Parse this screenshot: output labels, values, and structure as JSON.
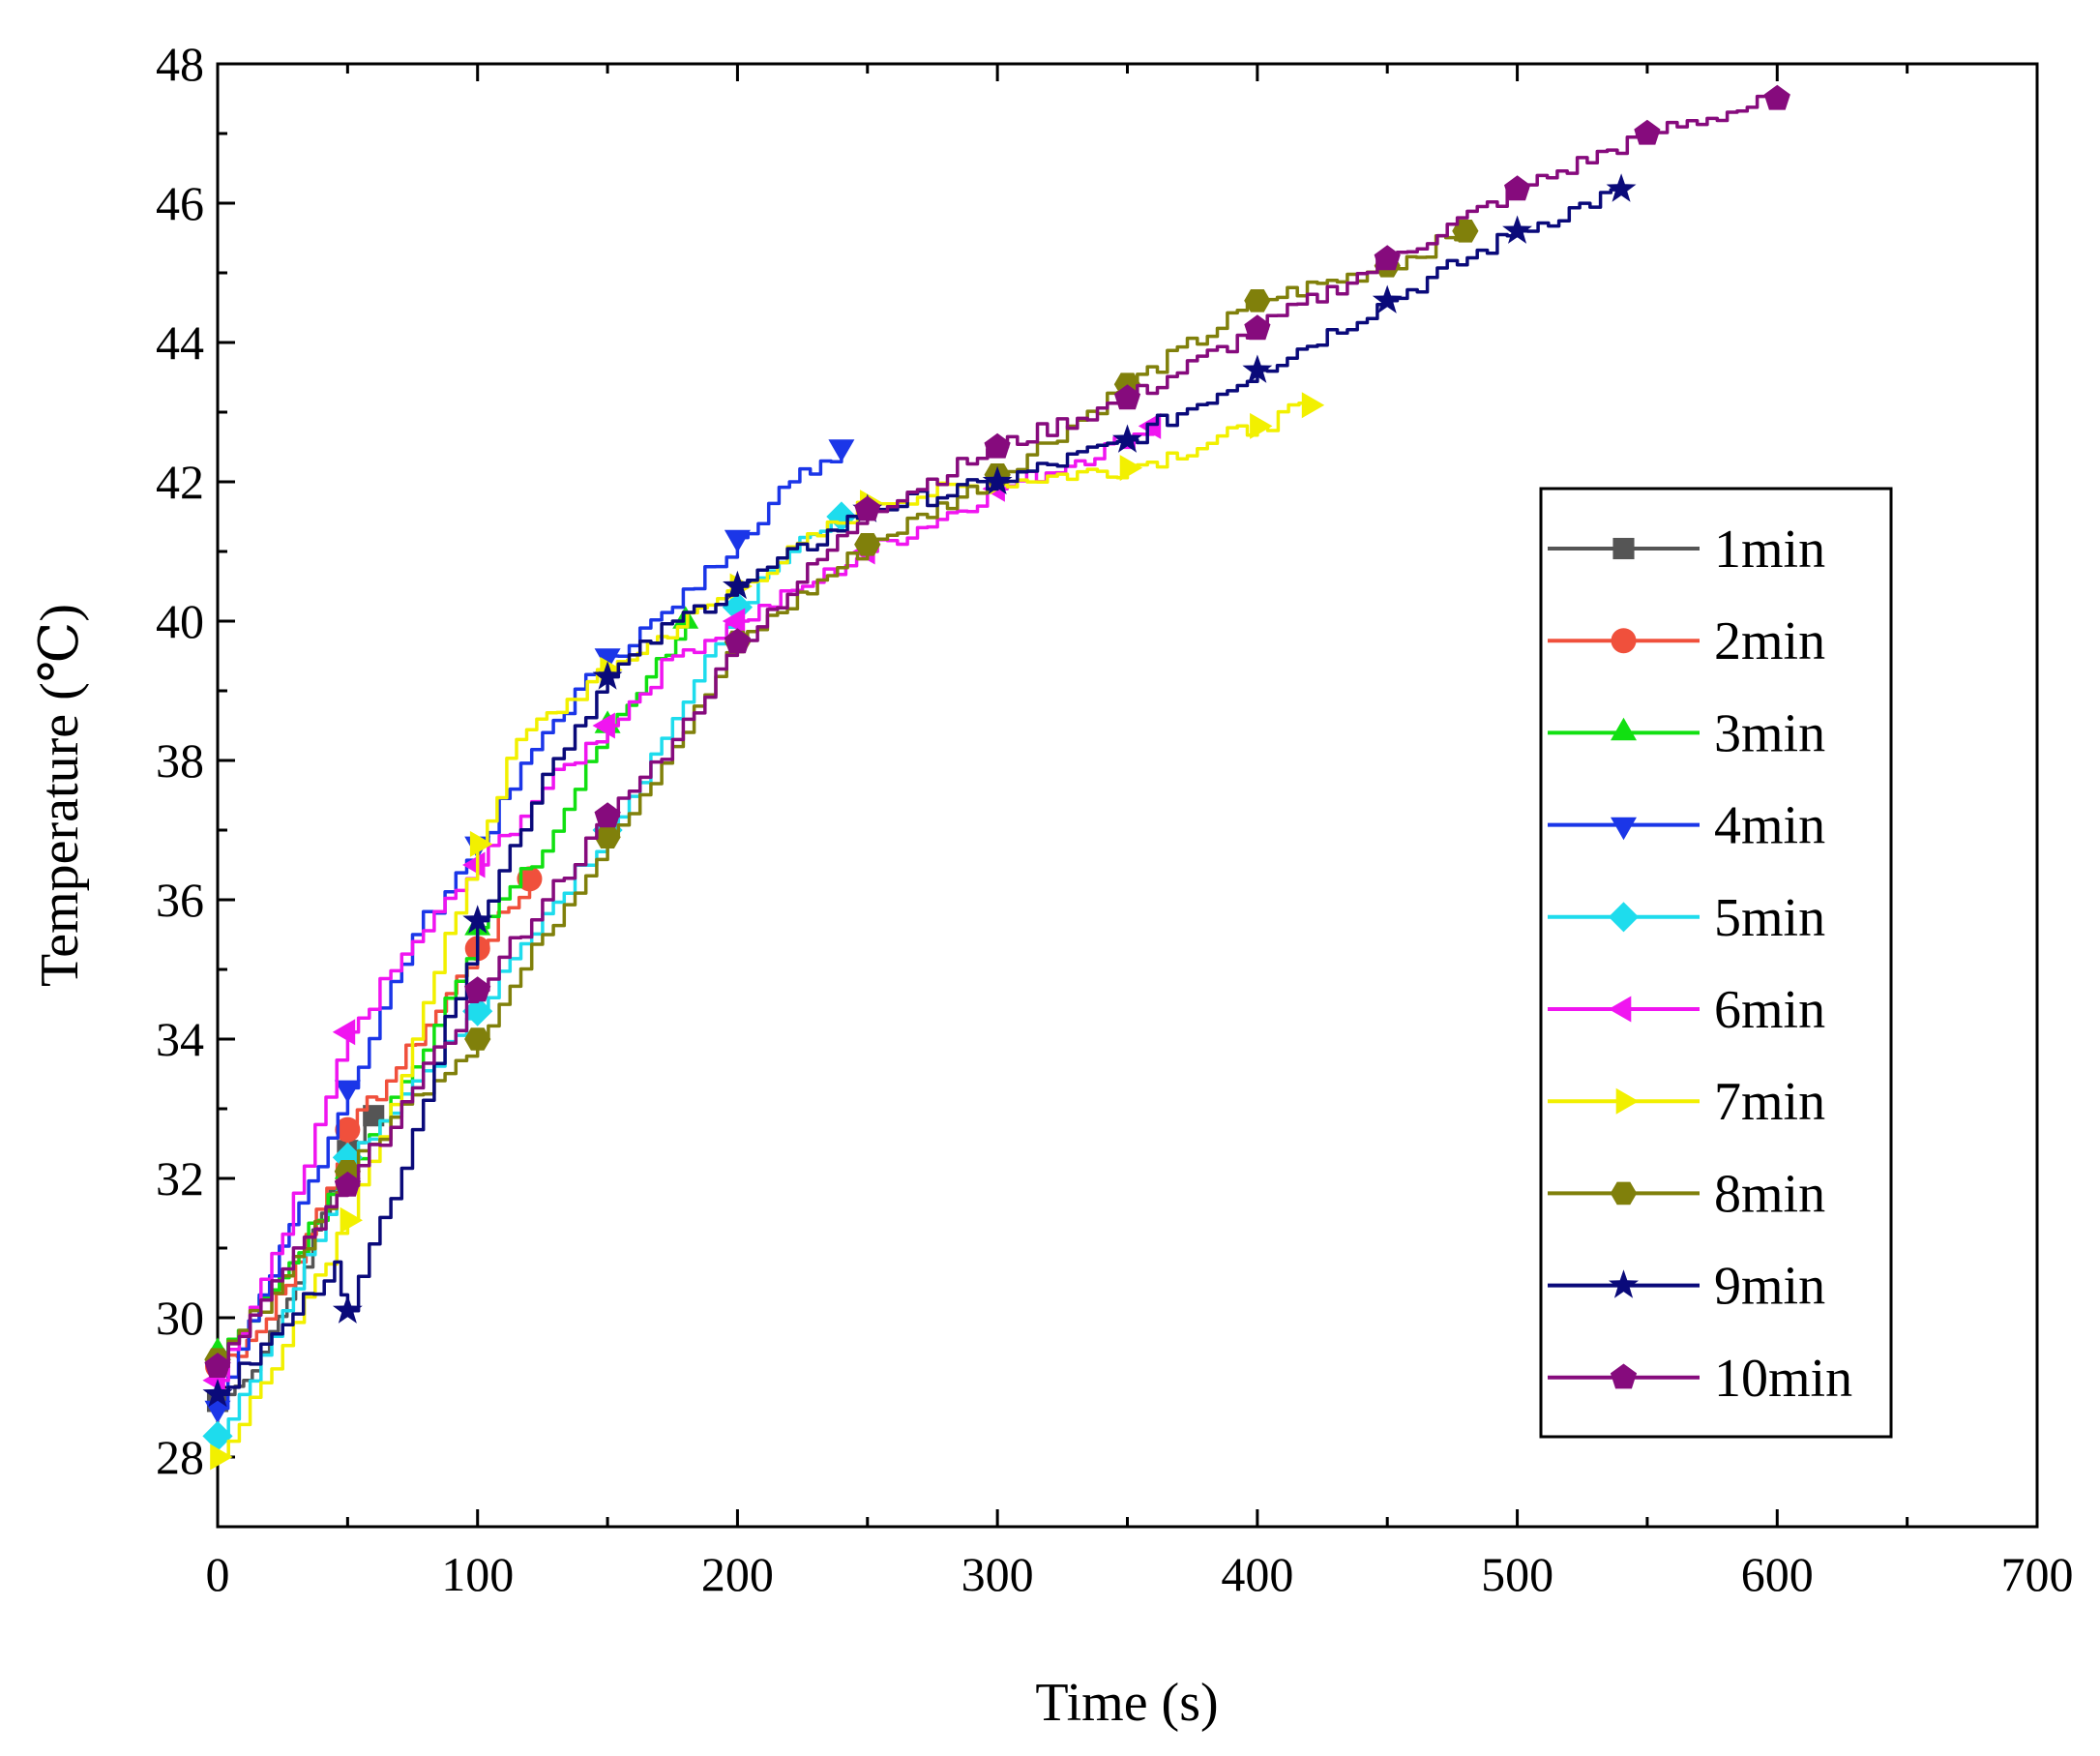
{
  "chart_data": {
    "type": "line",
    "title": "",
    "xlabel": "Time (s)",
    "ylabel": "Temperature (℃)",
    "xlim": [
      0,
      700
    ],
    "ylim": [
      27,
      48
    ],
    "xticks": [
      "0",
      "100",
      "200",
      "300",
      "400",
      "500",
      "600",
      "700"
    ],
    "yticks": [
      "28",
      "30",
      "32",
      "34",
      "36",
      "38",
      "40",
      "42",
      "44",
      "46",
      "48"
    ],
    "grid": false,
    "legend_position": "right",
    "series": [
      {
        "name": "1min",
        "color": "#555555",
        "marker": "square",
        "points": [
          [
            0,
            28.8
          ],
          [
            10,
            29.1
          ],
          [
            20,
            29.8
          ],
          [
            30,
            30.5
          ],
          [
            40,
            31.5
          ],
          [
            50,
            32.4
          ],
          [
            60,
            32.9
          ]
        ]
      },
      {
        "name": "2min",
        "color": "#f0503c",
        "marker": "circle",
        "points": [
          [
            0,
            29.3
          ],
          [
            15,
            29.8
          ],
          [
            30,
            30.8
          ],
          [
            50,
            32.7
          ],
          [
            65,
            33.4
          ],
          [
            80,
            34.2
          ],
          [
            100,
            35.3
          ],
          [
            120,
            36.3
          ]
        ]
      },
      {
        "name": "3min",
        "color": "#11e011",
        "marker": "triangle-up",
        "points": [
          [
            0,
            29.5
          ],
          [
            20,
            30.4
          ],
          [
            50,
            32.1
          ],
          [
            75,
            33.6
          ],
          [
            100,
            35.6
          ],
          [
            125,
            36.7
          ],
          [
            150,
            38.5
          ],
          [
            165,
            39.2
          ],
          [
            180,
            40.0
          ]
        ]
      },
      {
        "name": "4min",
        "color": "#1b36e8",
        "marker": "triangle-down",
        "points": [
          [
            0,
            28.7
          ],
          [
            20,
            30.6
          ],
          [
            50,
            33.3
          ],
          [
            75,
            35.5
          ],
          [
            100,
            36.8
          ],
          [
            125,
            38.4
          ],
          [
            150,
            39.5
          ],
          [
            175,
            40.2
          ],
          [
            200,
            41.2
          ],
          [
            220,
            42.0
          ],
          [
            240,
            42.5
          ]
        ]
      },
      {
        "name": "5min",
        "color": "#1edced",
        "marker": "diamond",
        "points": [
          [
            0,
            28.3
          ],
          [
            25,
            30.1
          ],
          [
            50,
            32.3
          ],
          [
            75,
            33.4
          ],
          [
            100,
            34.4
          ],
          [
            125,
            35.8
          ],
          [
            150,
            37.0
          ],
          [
            175,
            38.6
          ],
          [
            200,
            40.2
          ],
          [
            220,
            41.0
          ],
          [
            240,
            41.5
          ]
        ]
      },
      {
        "name": "6min",
        "color": "#f015f0",
        "marker": "triangle-left",
        "points": [
          [
            0,
            29.1
          ],
          [
            25,
            31.2
          ],
          [
            50,
            34.1
          ],
          [
            75,
            35.4
          ],
          [
            100,
            36.5
          ],
          [
            125,
            37.6
          ],
          [
            150,
            38.5
          ],
          [
            175,
            39.5
          ],
          [
            200,
            40.0
          ],
          [
            225,
            40.5
          ],
          [
            250,
            41.0
          ],
          [
            300,
            41.9
          ],
          [
            330,
            42.3
          ],
          [
            360,
            42.8
          ]
        ]
      },
      {
        "name": "7min",
        "color": "#f2f000",
        "marker": "triangle-right",
        "points": [
          [
            0,
            28.0
          ],
          [
            25,
            29.6
          ],
          [
            50,
            31.4
          ],
          [
            75,
            34.0
          ],
          [
            100,
            36.8
          ],
          [
            115,
            38.3
          ],
          [
            150,
            39.3
          ],
          [
            200,
            40.5
          ],
          [
            250,
            41.7
          ],
          [
            300,
            42.0
          ],
          [
            350,
            42.2
          ],
          [
            400,
            42.8
          ],
          [
            420,
            43.1
          ]
        ]
      },
      {
        "name": "8min",
        "color": "#80800b",
        "marker": "hexagon",
        "points": [
          [
            0,
            29.4
          ],
          [
            25,
            30.6
          ],
          [
            50,
            32.1
          ],
          [
            75,
            33.2
          ],
          [
            100,
            34.0
          ],
          [
            125,
            35.5
          ],
          [
            150,
            36.9
          ],
          [
            175,
            38.2
          ],
          [
            200,
            39.7
          ],
          [
            250,
            41.1
          ],
          [
            300,
            42.1
          ],
          [
            350,
            43.4
          ],
          [
            400,
            44.6
          ],
          [
            450,
            45.1
          ],
          [
            480,
            45.6
          ]
        ]
      },
      {
        "name": "9min",
        "color": "#0a0a7a",
        "marker": "star",
        "points": [
          [
            0,
            28.9
          ],
          [
            25,
            29.9
          ],
          [
            45,
            30.8
          ],
          [
            50,
            30.1
          ],
          [
            75,
            32.7
          ],
          [
            100,
            35.7
          ],
          [
            125,
            37.8
          ],
          [
            150,
            39.2
          ],
          [
            175,
            40.0
          ],
          [
            200,
            40.5
          ],
          [
            250,
            41.6
          ],
          [
            300,
            42.0
          ],
          [
            350,
            42.6
          ],
          [
            400,
            43.6
          ],
          [
            450,
            44.6
          ],
          [
            500,
            45.6
          ],
          [
            540,
            46.2
          ]
        ]
      },
      {
        "name": "10min",
        "color": "#860b7d",
        "marker": "pentagon",
        "points": [
          [
            0,
            29.3
          ],
          [
            25,
            30.7
          ],
          [
            50,
            31.9
          ],
          [
            75,
            33.3
          ],
          [
            100,
            34.7
          ],
          [
            125,
            36.0
          ],
          [
            150,
            37.2
          ],
          [
            175,
            38.3
          ],
          [
            200,
            39.7
          ],
          [
            250,
            41.6
          ],
          [
            300,
            42.5
          ],
          [
            350,
            43.2
          ],
          [
            400,
            44.2
          ],
          [
            450,
            45.2
          ],
          [
            500,
            46.2
          ],
          [
            550,
            47.0
          ],
          [
            600,
            47.5
          ]
        ]
      }
    ]
  }
}
